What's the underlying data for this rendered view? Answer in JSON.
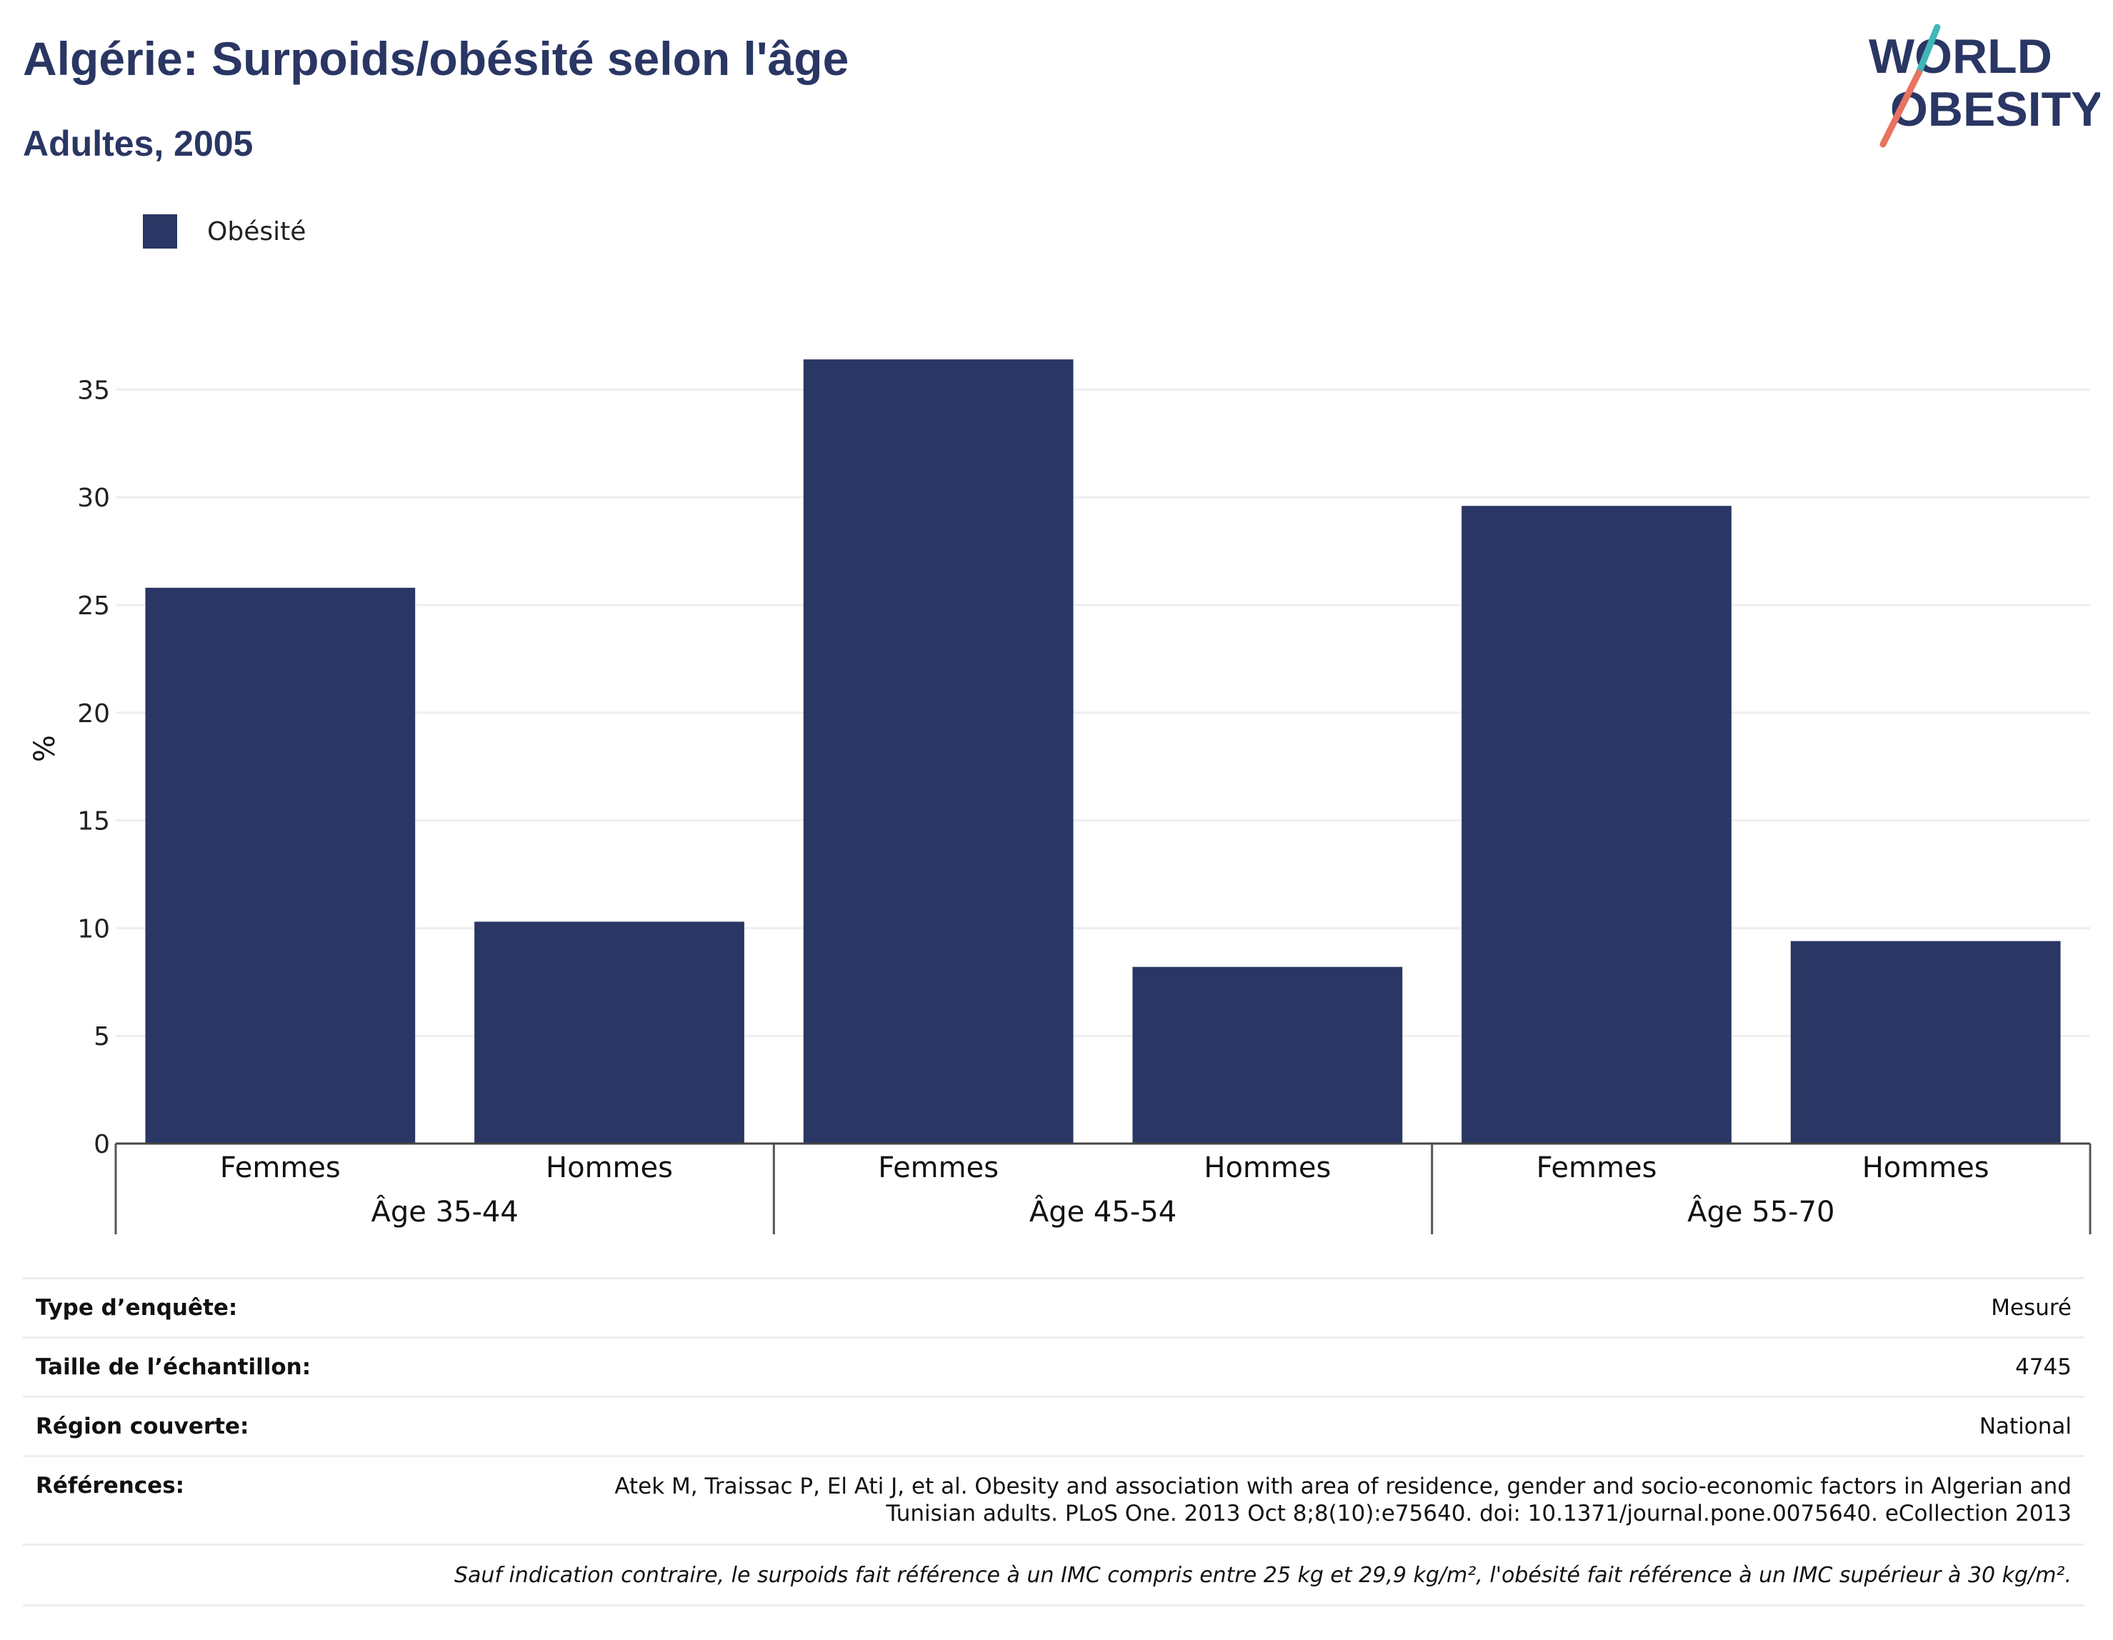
{
  "header": {
    "title": "Algérie: Surpoids/obésité selon l'âge",
    "subtitle": "Adultes, 2005"
  },
  "logo": {
    "line1": "WORLD",
    "line2": "OBESITY",
    "icon": "world-obesity-logo"
  },
  "colors": {
    "bar": "#2a3663",
    "title": "#2a3663",
    "grid": "#eeeeee",
    "logo_teal": "#3fb6b8",
    "logo_coral": "#e8735f"
  },
  "chart_data": {
    "type": "bar",
    "title": "Algérie: Surpoids/obésité selon l'âge",
    "subtitle": "Adultes, 2005",
    "ylabel": "%",
    "xlabel": "",
    "ylim": [
      0,
      37.5
    ],
    "yticks": [
      0,
      5,
      10,
      15,
      20,
      25,
      30,
      35
    ],
    "grid": true,
    "legend_position": "top-left",
    "categories": [
      "Femmes",
      "Hommes",
      "Femmes",
      "Hommes",
      "Femmes",
      "Hommes"
    ],
    "groups": [
      "Âge 35-44",
      "Âge 45-54",
      "Âge 55-70"
    ],
    "series": [
      {
        "name": "Obésité",
        "color": "#2a3663",
        "values": [
          25.8,
          10.3,
          36.4,
          8.2,
          29.6,
          9.4
        ]
      }
    ]
  },
  "meta": {
    "survey_type_label": "Type d’enquête:",
    "survey_type_value": "Mesuré",
    "sample_size_label": "Taille de l’échantillon:",
    "sample_size_value": "4745",
    "region_label": "Région couverte:",
    "region_value": "National",
    "references_label": "Références:",
    "references_line1": "Atek M, Traissac P, El Ati J, et al. Obesity and association with area of residence, gender and socio-economic factors in Algerian and",
    "references_line2": "Tunisian adults. PLoS One. 2013 Oct 8;8(10):e75640. doi: 10.1371/journal.pone.0075640. eCollection 2013",
    "note": "Sauf indication contraire, le surpoids fait référence à un IMC compris entre 25 kg et 29,9 kg/m², l'obésité fait référence à un IMC supérieur à 30 kg/m²."
  }
}
